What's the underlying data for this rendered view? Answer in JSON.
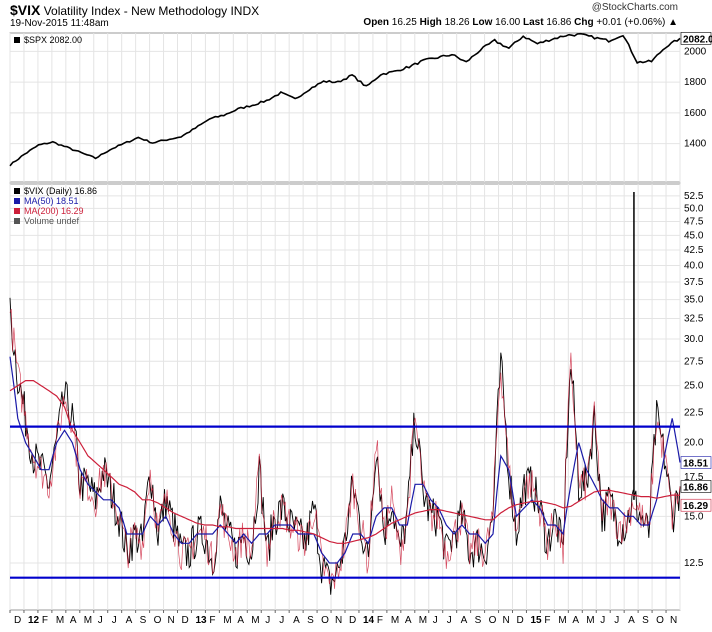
{
  "header": {
    "symbol": "$VIX",
    "title": "Volatility Index - New Methodology INDX",
    "datetime": "19-Nov-2015 11:48am",
    "brand": "@StockCharts.com",
    "quote": {
      "open_label": "Open",
      "open": "16.25",
      "high_label": "High",
      "high": "18.26",
      "low_label": "Low",
      "low": "16.00",
      "last_label": "Last",
      "last": "16.86",
      "chg_label": "Chg",
      "chg": "+0.01 (+0.06%)"
    }
  },
  "colors": {
    "spx": "#000000",
    "vix": "#000000",
    "ma50": "#1a1aa8",
    "ma200": "#cc1f3a",
    "hline": "#0000cc",
    "grid": "#e4e4e4",
    "badge_bg": "#ffffff"
  },
  "chart_data": [
    {
      "type": "line",
      "legend": "$SPX 2082.00",
      "series": [
        {
          "name": "$SPX",
          "values": [
            1260,
            1330,
            1390,
            1410,
            1375,
            1340,
            1305,
            1360,
            1400,
            1440,
            1405,
            1425,
            1445,
            1500,
            1560,
            1585,
            1625,
            1650,
            1680,
            1730,
            1690,
            1755,
            1805,
            1800,
            1845,
            1770,
            1850,
            1870,
            1900,
            1940,
            1960,
            1980,
            1930,
            2010,
            2070,
            2020,
            2100,
            2050,
            2080,
            2105,
            2110,
            2090,
            2070,
            2110,
            1930,
            1935,
            2030,
            2085
          ]
        }
      ],
      "x_start": "2011-12",
      "ylim": [
        1150,
        2120
      ],
      "yticks": [
        1400,
        1600,
        1800,
        2000
      ],
      "last_label": "2082.00"
    },
    {
      "type": "line",
      "legend": [
        "$VIX (Daily) 16.86",
        "MA(50) 18.51",
        "MA(200) 16.29",
        "Volume undef"
      ],
      "series": [
        {
          "name": "$VIX",
          "values": [
            33,
            26,
            22,
            19,
            18,
            17,
            20,
            24,
            22,
            17,
            17,
            16,
            18,
            16.5,
            15,
            13,
            14,
            13.5,
            18,
            14,
            16,
            14.5,
            13,
            13,
            14,
            14,
            12.5,
            15.5,
            14,
            13,
            14,
            13,
            18,
            13,
            15,
            15.5,
            14.5,
            14,
            13.5,
            15.5,
            12.5,
            11.5,
            12,
            13.5,
            17,
            14.5,
            12.5,
            20,
            14,
            16,
            13,
            15,
            22,
            16.5,
            15,
            15,
            13,
            14,
            15,
            13,
            13.5,
            13,
            15,
            27,
            18,
            14,
            17,
            17,
            15.5,
            13.5,
            15,
            13,
            27,
            17,
            17,
            22,
            15,
            16,
            14.5,
            14.5,
            16,
            15,
            14,
            22,
            19,
            15,
            16.86
          ]
        },
        {
          "name": "MA(50)",
          "values": [
            28,
            22,
            20,
            19,
            18,
            18,
            20,
            21,
            20,
            18,
            17,
            16.5,
            16,
            16,
            15.5,
            14,
            14,
            14,
            15,
            14.5,
            15,
            14,
            13.5,
            13.5,
            14,
            14,
            14,
            14.5,
            14,
            13.5,
            14,
            13.5,
            14,
            14,
            14.5,
            14.5,
            14.5,
            14,
            14,
            14,
            13,
            12.5,
            12.5,
            13,
            14,
            14,
            13.5,
            15,
            15.5,
            15.5,
            14.5,
            14.5,
            17,
            17,
            16,
            15.5,
            14.5,
            14,
            14.5,
            14,
            14,
            13.5,
            14,
            19,
            18,
            15,
            15.5,
            16,
            15.5,
            14.5,
            14.5,
            14,
            17,
            20,
            18,
            17,
            16,
            15.5,
            15.5,
            15,
            15,
            14.5,
            14.5,
            16,
            19,
            22,
            18.51
          ]
        },
        {
          "name": "MA(200)",
          "values": [
            24.5,
            25,
            25.5,
            25.5,
            25,
            24.5,
            24,
            23,
            21,
            20,
            19,
            18.5,
            18,
            17.5,
            17,
            16.8,
            16.5,
            16,
            16,
            15.8,
            15.5,
            15.2,
            15,
            14.8,
            14.6,
            14.5,
            14.5,
            14.4,
            14.4,
            14.3,
            14.3,
            14.3,
            14.3,
            14.3,
            14.3,
            14.3,
            14.2,
            14.2,
            14.1,
            14,
            13.8,
            13.6,
            13.5,
            13.5,
            13.6,
            13.7,
            13.8,
            14,
            14.3,
            14.6,
            14.8,
            15,
            15.2,
            15.3,
            15.4,
            15.4,
            15.3,
            15.2,
            15.1,
            15,
            14.9,
            14.8,
            14.8,
            15.2,
            15.5,
            15.7,
            15.8,
            15.9,
            15.9,
            15.8,
            15.7,
            15.5,
            15.6,
            15.9,
            16.2,
            16.5,
            16.6,
            16.6,
            16.5,
            16.4,
            16.3,
            16.2,
            16.2,
            16.1,
            16.2,
            16.3,
            16.29
          ]
        }
      ],
      "x_start": "2011-12",
      "ylim": [
        10.4,
        55
      ],
      "log_scale": true,
      "yticks": [
        12.5,
        15.0,
        17.5,
        20.0,
        22.5,
        25.0,
        27.5,
        30.0,
        32.5,
        35.0,
        37.5,
        40.0,
        42.5,
        45.0,
        47.5,
        50.0,
        52.5
      ],
      "hlines": [
        21.3,
        11.8
      ],
      "spike": {
        "date": "2015-08",
        "value": 53.3
      },
      "last_labels": {
        "ma50": "18.51",
        "vix": "16.86",
        "ma200": "16.29"
      }
    }
  ],
  "x_axis": {
    "labels": [
      "D",
      "12",
      "F",
      "M",
      "A",
      "M",
      "J",
      "J",
      "A",
      "S",
      "O",
      "N",
      "D",
      "13",
      "F",
      "M",
      "A",
      "M",
      "J",
      "J",
      "A",
      "S",
      "O",
      "N",
      "D",
      "14",
      "F",
      "M",
      "A",
      "M",
      "J",
      "J",
      "A",
      "S",
      "O",
      "N",
      "D",
      "15",
      "F",
      "M",
      "A",
      "M",
      "J",
      "J",
      "A",
      "S",
      "O",
      "N"
    ],
    "year_labels": [
      "12",
      "13",
      "14",
      "15"
    ]
  }
}
